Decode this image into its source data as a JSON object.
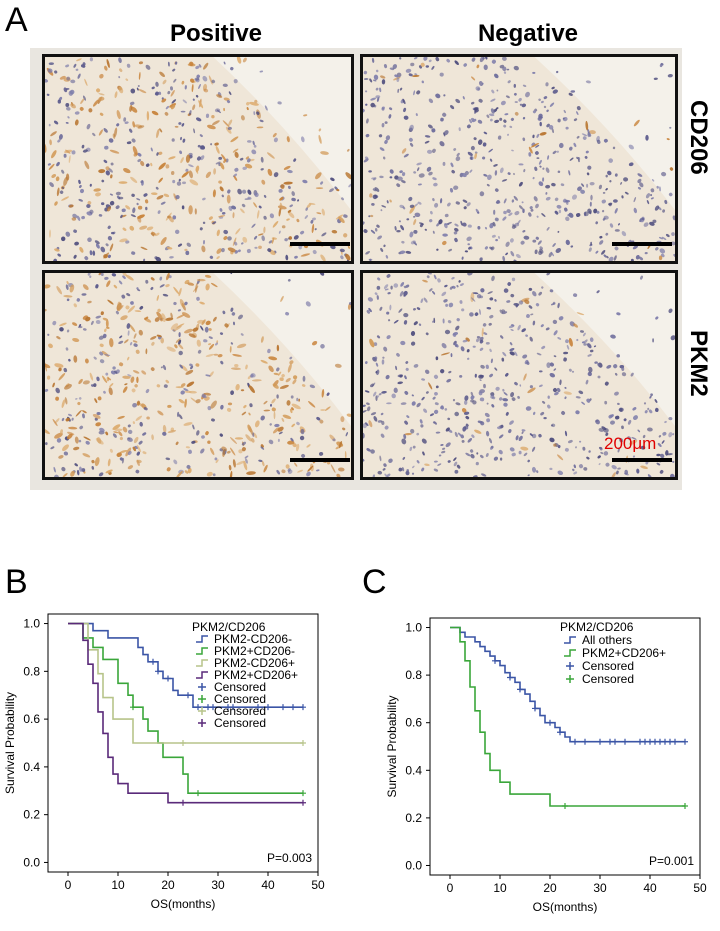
{
  "panelA": {
    "letter": "A",
    "col_positive": "Positive",
    "col_negative": "Negative",
    "row_cd206": "CD206",
    "row_pkm2": "PKM2",
    "scale_label": "200μm"
  },
  "chart_data": [
    {
      "panel": "B",
      "type": "line",
      "subtype": "kaplan-meier step",
      "xlabel": "OS(months)",
      "ylabel": "Survival Probability",
      "xlim": [
        -4,
        50
      ],
      "ylim": [
        -0.04,
        1.04
      ],
      "xticks": [
        "0",
        "10",
        "20",
        "30",
        "40",
        "50"
      ],
      "yticks": [
        "0.0",
        "0.2",
        "0.4",
        "0.6",
        "0.8",
        "1.0"
      ],
      "legend_title": "PKM2/CD206",
      "legend_placement": "top-right",
      "annotation": "P=0.003",
      "series": [
        {
          "name": "PKM2-CD206-",
          "color": "#3b55a6",
          "steps": [
            [
              0,
              1.0
            ],
            [
              5,
              0.97
            ],
            [
              8,
              0.94
            ],
            [
              14,
              0.9
            ],
            [
              15,
              0.87
            ],
            [
              16,
              0.84
            ],
            [
              18,
              0.8
            ],
            [
              19,
              0.77
            ],
            [
              21,
              0.72
            ],
            [
              22,
              0.7
            ],
            [
              25,
              0.65
            ],
            [
              47,
              0.65
            ]
          ],
          "censored": [
            [
              17,
              0.84
            ],
            [
              18,
              0.8
            ],
            [
              20,
              0.77
            ],
            [
              24,
              0.7
            ],
            [
              26,
              0.65
            ],
            [
              28,
              0.65
            ],
            [
              29,
              0.65
            ],
            [
              32,
              0.65
            ],
            [
              33,
              0.65
            ],
            [
              38,
              0.65
            ],
            [
              40,
              0.65
            ],
            [
              43,
              0.65
            ],
            [
              45,
              0.65
            ],
            [
              47,
              0.65
            ]
          ]
        },
        {
          "name": "PKM2+CD206-",
          "color": "#3aa63a",
          "steps": [
            [
              0,
              1.0
            ],
            [
              3,
              0.94
            ],
            [
              5,
              0.9
            ],
            [
              7,
              0.85
            ],
            [
              10,
              0.75
            ],
            [
              12,
              0.7
            ],
            [
              13,
              0.65
            ],
            [
              15,
              0.6
            ],
            [
              16,
              0.55
            ],
            [
              18,
              0.5
            ],
            [
              19,
              0.44
            ],
            [
              23,
              0.37
            ],
            [
              24,
              0.29
            ],
            [
              47,
              0.29
            ]
          ],
          "censored": [
            [
              13,
              0.65
            ],
            [
              26,
              0.29
            ],
            [
              47,
              0.29
            ]
          ]
        },
        {
          "name": "PKM2-CD206+",
          "color": "#b7c48a",
          "steps": [
            [
              0,
              1.0
            ],
            [
              4,
              0.89
            ],
            [
              6,
              0.79
            ],
            [
              7,
              0.69
            ],
            [
              9,
              0.6
            ],
            [
              13,
              0.5
            ],
            [
              47,
              0.5
            ]
          ],
          "censored": [
            [
              23,
              0.5
            ],
            [
              47,
              0.5
            ]
          ]
        },
        {
          "name": "PKM2+CD206+",
          "color": "#5a2a7a",
          "steps": [
            [
              0,
              1.0
            ],
            [
              3,
              0.93
            ],
            [
              4,
              0.83
            ],
            [
              5,
              0.75
            ],
            [
              6,
              0.63
            ],
            [
              7,
              0.54
            ],
            [
              8,
              0.44
            ],
            [
              9,
              0.37
            ],
            [
              10,
              0.33
            ],
            [
              12,
              0.29
            ],
            [
              20,
              0.25
            ],
            [
              47,
              0.25
            ]
          ],
          "censored": [
            [
              23,
              0.25
            ],
            [
              47,
              0.25
            ]
          ]
        }
      ],
      "censored_legend": [
        {
          "name": "Censored",
          "color": "#3b55a6"
        },
        {
          "name": "Censored",
          "color": "#3aa63a"
        },
        {
          "name": "Censored",
          "color": "#b7c48a"
        },
        {
          "name": "Censored",
          "color": "#5a2a7a"
        }
      ]
    },
    {
      "panel": "C",
      "type": "line",
      "subtype": "kaplan-meier step",
      "xlabel": "OS(months)",
      "ylabel": "Survival Probability",
      "xlim": [
        -4,
        50
      ],
      "ylim": [
        -0.04,
        1.04
      ],
      "xticks": [
        "0",
        "10",
        "20",
        "30",
        "40",
        "50"
      ],
      "yticks": [
        "0.0",
        "0.2",
        "0.4",
        "0.6",
        "0.8",
        "1.0"
      ],
      "legend_title": "PKM2/CD206",
      "legend_placement": "top-right",
      "annotation": "P=0.001",
      "series": [
        {
          "name": "All others",
          "color": "#3b55a6",
          "steps": [
            [
              0,
              1.0
            ],
            [
              2,
              0.98
            ],
            [
              3,
              0.96
            ],
            [
              5,
              0.94
            ],
            [
              6,
              0.92
            ],
            [
              7,
              0.9
            ],
            [
              8,
              0.88
            ],
            [
              9,
              0.86
            ],
            [
              10,
              0.84
            ],
            [
              11,
              0.81
            ],
            [
              12,
              0.79
            ],
            [
              13,
              0.77
            ],
            [
              14,
              0.74
            ],
            [
              15,
              0.72
            ],
            [
              16,
              0.69
            ],
            [
              17,
              0.66
            ],
            [
              18,
              0.63
            ],
            [
              19,
              0.6
            ],
            [
              21,
              0.58
            ],
            [
              22,
              0.56
            ],
            [
              23,
              0.54
            ],
            [
              24,
              0.52
            ],
            [
              47,
              0.52
            ]
          ],
          "censored": [
            [
              9,
              0.86
            ],
            [
              12,
              0.79
            ],
            [
              14,
              0.74
            ],
            [
              17,
              0.66
            ],
            [
              20,
              0.6
            ],
            [
              22,
              0.56
            ],
            [
              25,
              0.52
            ],
            [
              27,
              0.52
            ],
            [
              30,
              0.52
            ],
            [
              32,
              0.52
            ],
            [
              33,
              0.52
            ],
            [
              35,
              0.52
            ],
            [
              38,
              0.52
            ],
            [
              39,
              0.52
            ],
            [
              40,
              0.52
            ],
            [
              41,
              0.52
            ],
            [
              42,
              0.52
            ],
            [
              43,
              0.52
            ],
            [
              44,
              0.52
            ],
            [
              45,
              0.52
            ],
            [
              47,
              0.52
            ]
          ]
        },
        {
          "name": "PKM2+CD206+",
          "color": "#3aa63a",
          "steps": [
            [
              0,
              1.0
            ],
            [
              2,
              0.94
            ],
            [
              3,
              0.86
            ],
            [
              4,
              0.75
            ],
            [
              5,
              0.65
            ],
            [
              6,
              0.56
            ],
            [
              7,
              0.47
            ],
            [
              8,
              0.4
            ],
            [
              10,
              0.35
            ],
            [
              12,
              0.3
            ],
            [
              20,
              0.25
            ],
            [
              47,
              0.25
            ]
          ],
          "censored": [
            [
              23,
              0.25
            ],
            [
              47,
              0.25
            ]
          ]
        }
      ],
      "censored_legend": [
        {
          "name": "Censored",
          "color": "#3b55a6"
        },
        {
          "name": "Censored",
          "color": "#3aa63a"
        }
      ]
    }
  ],
  "panel_letters": {
    "b": "B",
    "c": "C"
  }
}
